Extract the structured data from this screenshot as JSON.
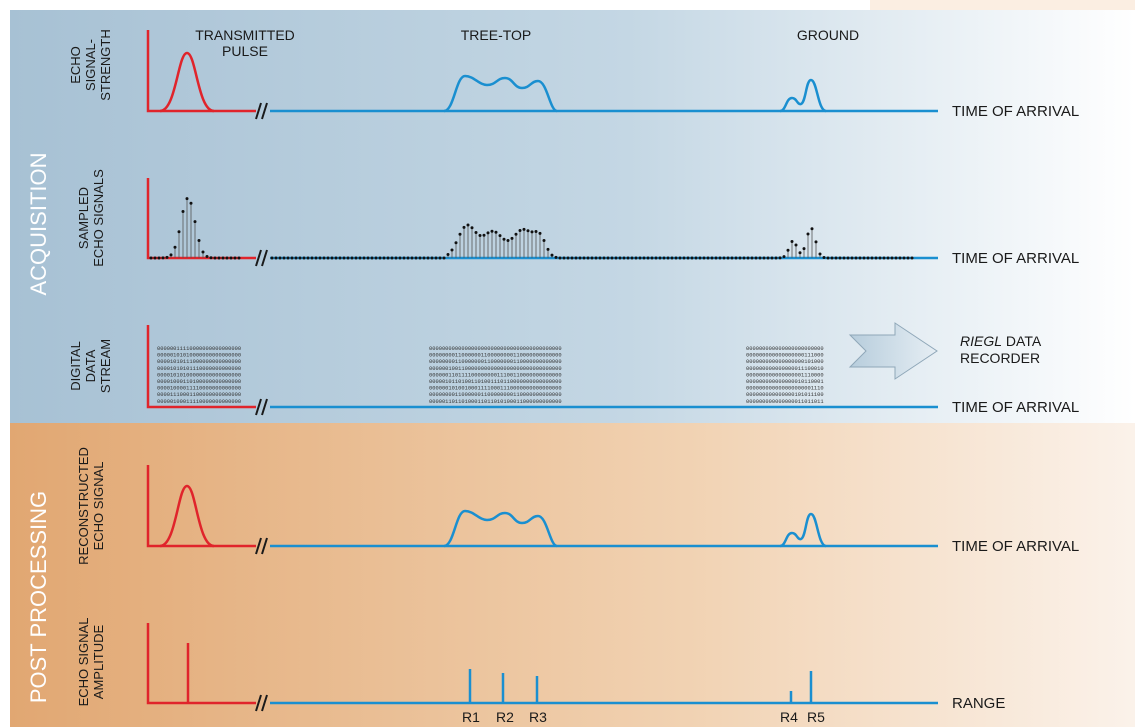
{
  "sections": {
    "acquisition": "ACQUISITION",
    "post_processing": "POST PROCESSING"
  },
  "headers": {
    "transmitted_pulse": [
      "TRANSMITTED",
      "PULSE"
    ],
    "tree_top": "TREE-TOP",
    "ground": "GROUND"
  },
  "rows": [
    {
      "key": "echo",
      "ylabel": [
        "ECHO",
        "SIGNAL-",
        "STRENGTH"
      ],
      "axis_label": "TIME OF ARRIVAL"
    },
    {
      "key": "sampled",
      "ylabel": [
        "SAMPLED",
        "ECHO SIGNALS"
      ],
      "axis_label": "TIME OF ARRIVAL"
    },
    {
      "key": "digital",
      "ylabel": [
        "DIGITAL",
        "DATA",
        "STREAM"
      ],
      "axis_label": "TIME OF ARRIVAL"
    },
    {
      "key": "reconstructed",
      "ylabel": [
        "RECONSTRUCTED",
        "ECHO SIGNAL"
      ],
      "axis_label": "TIME OF ARRIVAL"
    },
    {
      "key": "amplitude",
      "ylabel": [
        "ECHO SIGNAL",
        "AMPLITUDE"
      ],
      "axis_label": "RANGE"
    }
  ],
  "recorder": {
    "brand": "RIEGL",
    "line1_rest": " DATA",
    "line2": "RECORDER"
  },
  "range_labels": [
    "R1",
    "R2",
    "R3",
    "R4",
    "R5"
  ],
  "colors": {
    "pulse_red": "#e0242b",
    "signal_blue": "#1a8fd0",
    "acq_bg": "#a9c3d6",
    "post_bg": "#e3aa74"
  },
  "bitstreams": {
    "pulse": [
      "00000011110000000000000000",
      "00000101010000000000000000",
      "00001010111000000000000000",
      "00001010101110000000000000",
      "00001010100000000000000000",
      "00001000110100000000000000",
      "00001000011110000000000000",
      "00001110001100000000000000",
      "00000100011110000000000000"
    ],
    "tree": [
      "00000000000000000000000000000000000000000",
      "00000000110000001100000000110000000000000",
      "00000000110000000110000000110000000000000",
      "00000010011000000000000000000000000000000",
      "00000011011110000000011100110000000000000",
      "00000101101001101001110110000000000000000",
      "00000010100100011110001110000000000000000",
      "00000000110000001100000000110000000000000",
      "00000110110100011011010100011000000000000"
    ],
    "ground": [
      "000000000000000000000000",
      "000000000000000000111000",
      "000000000000000000101000",
      "000000000000000011100010",
      "000000000000000001110000",
      "000000000000000010110001",
      "000000000000000000001110",
      "000000000000000101011100",
      "000000000000000011011011"
    ]
  }
}
